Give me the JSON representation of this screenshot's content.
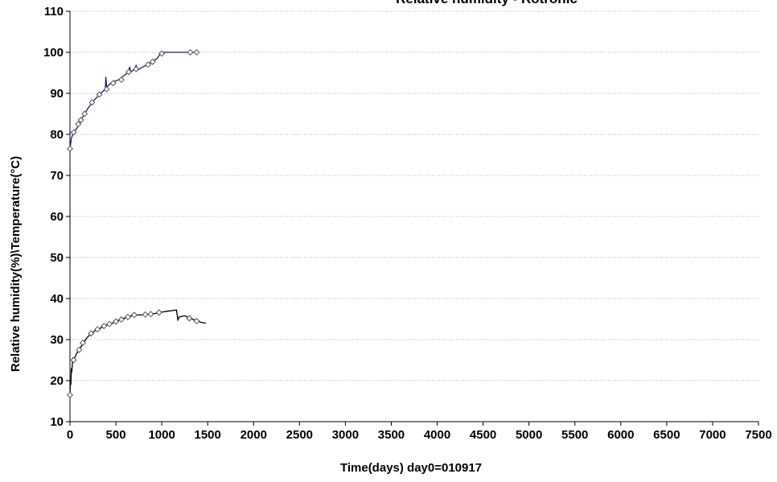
{
  "chart_data": {
    "type": "line",
    "title": "Relative humidity - Rotronic",
    "xlabel": "Time(days) day0=010917",
    "ylabel": "Relative humidity(%)\\Temperature(°C)",
    "xlim": [
      0,
      7500
    ],
    "ylim": [
      10,
      110
    ],
    "x_ticks": [
      0,
      500,
      1000,
      1500,
      2000,
      2500,
      3000,
      3500,
      4000,
      4500,
      5000,
      5500,
      6000,
      6500,
      7000,
      7500
    ],
    "y_ticks": [
      10,
      20,
      30,
      40,
      50,
      60,
      70,
      80,
      90,
      100,
      110
    ],
    "grid": "horizontal",
    "legend": "none",
    "series": [
      {
        "color": "#1a1a6e",
        "marker": "diamond",
        "line": [
          [
            0,
            76.5
          ],
          [
            15,
            79
          ],
          [
            30,
            80
          ],
          [
            60,
            81
          ],
          [
            90,
            82
          ],
          [
            120,
            83.5
          ],
          [
            160,
            85
          ],
          [
            200,
            86.5
          ],
          [
            250,
            88
          ],
          [
            300,
            89.2
          ],
          [
            350,
            90.3
          ],
          [
            385,
            91
          ],
          [
            390,
            94
          ],
          [
            400,
            91.5
          ],
          [
            430,
            92.2
          ],
          [
            470,
            92.8
          ],
          [
            520,
            93.2
          ],
          [
            560,
            93.8
          ],
          [
            600,
            94.5
          ],
          [
            640,
            95.3
          ],
          [
            650,
            96.5
          ],
          [
            660,
            95.2
          ],
          [
            700,
            95.8
          ],
          [
            720,
            96.8
          ],
          [
            740,
            95.7
          ],
          [
            760,
            96
          ],
          [
            800,
            96.5
          ],
          [
            850,
            97
          ],
          [
            900,
            97.8
          ],
          [
            950,
            98.5
          ],
          [
            980,
            99.5
          ],
          [
            1000,
            100
          ],
          [
            1100,
            100
          ],
          [
            1200,
            100
          ],
          [
            1300,
            100
          ],
          [
            1380,
            100
          ]
        ],
        "points": [
          [
            0,
            76.5
          ],
          [
            40,
            80.5
          ],
          [
            90,
            82.5
          ],
          [
            120,
            83.5
          ],
          [
            160,
            85
          ],
          [
            240,
            87.8
          ],
          [
            320,
            89.7
          ],
          [
            400,
            91
          ],
          [
            470,
            92.5
          ],
          [
            560,
            93.3
          ],
          [
            640,
            95.2
          ],
          [
            720,
            95.9
          ],
          [
            850,
            97
          ],
          [
            900,
            97.7
          ],
          [
            1000,
            99.7
          ],
          [
            1310,
            100
          ],
          [
            1380,
            100
          ]
        ]
      },
      {
        "color": "#000000",
        "marker": "diamond",
        "line": [
          [
            0,
            16.5
          ],
          [
            5,
            20
          ],
          [
            10,
            19
          ],
          [
            15,
            23
          ],
          [
            20,
            22
          ],
          [
            30,
            25.5
          ],
          [
            50,
            25.5
          ],
          [
            70,
            26.5
          ],
          [
            100,
            27.5
          ],
          [
            140,
            29
          ],
          [
            180,
            30.3
          ],
          [
            230,
            31.5
          ],
          [
            300,
            32.5
          ],
          [
            360,
            33.1
          ],
          [
            420,
            33.7
          ],
          [
            500,
            34.3
          ],
          [
            560,
            35
          ],
          [
            620,
            35.4
          ],
          [
            700,
            36
          ],
          [
            780,
            36
          ],
          [
            860,
            36.2
          ],
          [
            940,
            36.4
          ],
          [
            1000,
            36.7
          ],
          [
            1060,
            36.9
          ],
          [
            1160,
            37.2
          ],
          [
            1175,
            34.8
          ],
          [
            1190,
            35.5
          ],
          [
            1250,
            35.8
          ],
          [
            1330,
            35
          ],
          [
            1380,
            34.6
          ],
          [
            1430,
            34.2
          ],
          [
            1480,
            34
          ]
        ],
        "points": [
          [
            0,
            16.5
          ],
          [
            40,
            25
          ],
          [
            100,
            27.5
          ],
          [
            140,
            29.2
          ],
          [
            230,
            31.5
          ],
          [
            300,
            32.5
          ],
          [
            370,
            33.3
          ],
          [
            430,
            33.8
          ],
          [
            500,
            34.4
          ],
          [
            560,
            34.9
          ],
          [
            630,
            35.5
          ],
          [
            700,
            36
          ],
          [
            820,
            36.1
          ],
          [
            880,
            36.2
          ],
          [
            970,
            36.6
          ],
          [
            1300,
            35.2
          ],
          [
            1380,
            34.5
          ]
        ]
      }
    ]
  }
}
